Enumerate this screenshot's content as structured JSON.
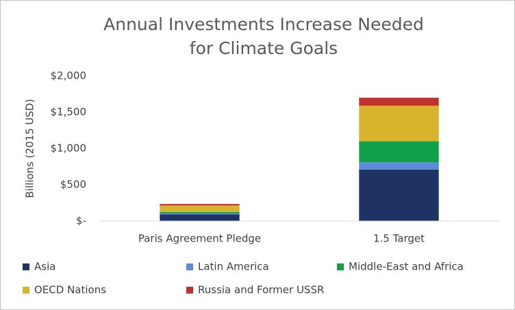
{
  "chart_data": {
    "type": "stacked-bar",
    "title": "Annual Investments Increase Needed for Climate Goals",
    "y_label": "Billions (2015 USD)",
    "categories": [
      "Paris Agreement Pledge",
      "1.5 Target"
    ],
    "series": [
      {
        "name": "Asia",
        "color": "#1f3264",
        "values": [
          90,
          710
        ]
      },
      {
        "name": "Latin America",
        "color": "#5b8bd9",
        "values": [
          15,
          100
        ]
      },
      {
        "name": "Middle-East and Africa",
        "color": "#11a04a",
        "values": [
          20,
          290
        ]
      },
      {
        "name": "OECD Nations",
        "color": "#d9b32c",
        "values": [
          90,
          490
        ]
      },
      {
        "name": "Russia and Former USSR",
        "color": "#c0312b",
        "values": [
          20,
          110
        ]
      }
    ],
    "ylim": [
      0,
      2000
    ],
    "yticks": [
      {
        "value": 0,
        "label": "$-"
      },
      {
        "value": 500,
        "label": "$500"
      },
      {
        "value": 1000,
        "label": "$1,000"
      },
      {
        "value": 1500,
        "label": "$1,500"
      },
      {
        "value": 2000,
        "label": "$2,000"
      }
    ],
    "grid": false,
    "legend": "bottom"
  }
}
